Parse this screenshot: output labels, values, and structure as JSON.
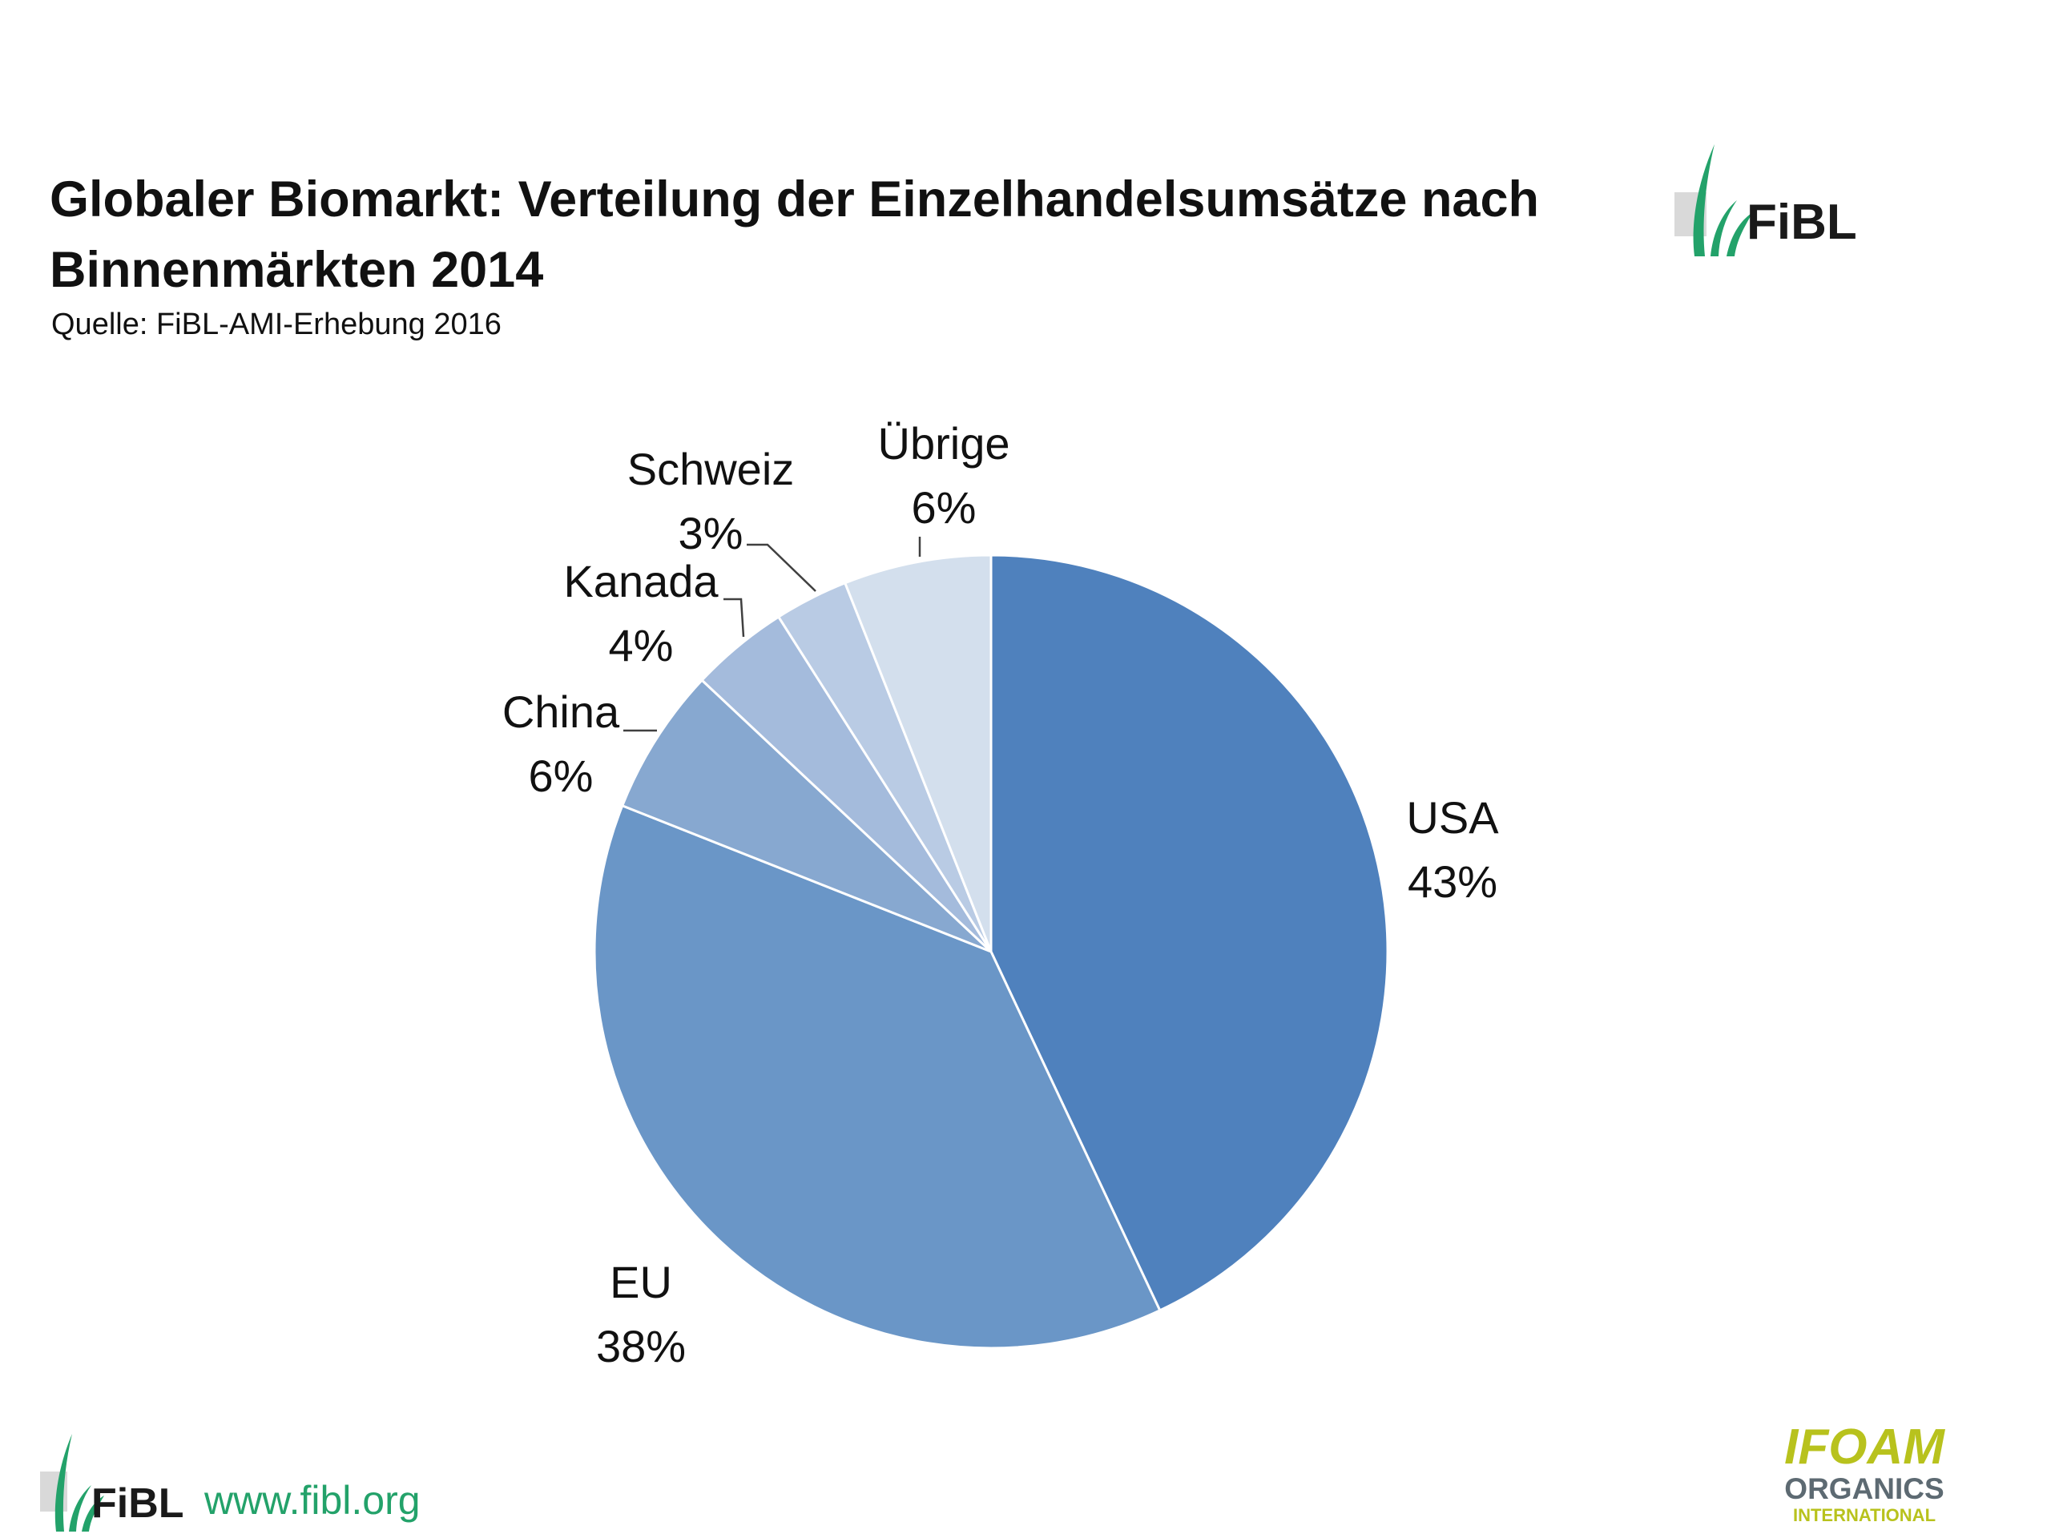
{
  "title": "Globaler Biomarkt: Verteilung der Einzelhandelsumsätze nach Binnenmärkten 2014",
  "subtitle": "Quelle: FiBL-AMI-Erhebung 2016",
  "footer": {
    "logo_text": "FiBL",
    "url": "www.fibl.org",
    "partner_logo_line1": "IFOAM",
    "partner_logo_line2": "ORGANICS",
    "partner_logo_line3": "INTERNATIONAL"
  },
  "colors": {
    "fibl_green": "#23a26a",
    "ifoam_yellow": "#b8c21d",
    "ifoam_dark": "#5d6a72"
  },
  "chart_data": {
    "type": "pie",
    "title": "",
    "start_angle_deg": 0,
    "direction": "clockwise",
    "slices": [
      {
        "name": "USA",
        "value": 43,
        "label": "43%",
        "color": "#4f81bd"
      },
      {
        "name": "EU",
        "value": 38,
        "label": "38%",
        "color": "#6a96c7"
      },
      {
        "name": "China",
        "value": 6,
        "label": "6%",
        "color": "#87a8d0"
      },
      {
        "name": "Kanada",
        "value": 4,
        "label": "4%",
        "color": "#a4bbdc"
      },
      {
        "name": "Schweiz",
        "value": 3,
        "label": "3%",
        "color": "#b9cbe4"
      },
      {
        "name": "Übrige",
        "value": 6,
        "label": "6%",
        "color": "#d3dfed"
      }
    ]
  }
}
